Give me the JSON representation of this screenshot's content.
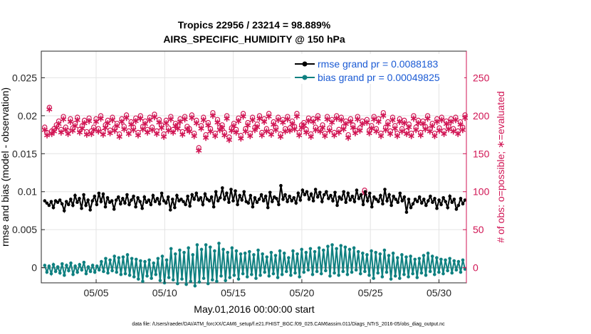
{
  "chart_data": {
    "type": "line",
    "title": "Tropics 22956 / 23214 = 98.889%",
    "subtitle": "AIRS_SPECIFIC_HUMIDITY @ 150 hPa",
    "xlabel": "May.01,2016 00:00:00 start",
    "ylabel_left": "rmse and bias (model - observation)",
    "ylabel_right": "# of obs: o=possible; ∗=evaluated",
    "xlim": [
      1,
      32
    ],
    "ylim_left": [
      -0.002,
      0.0285
    ],
    "ylim_right": [
      -20,
      285
    ],
    "x_ticks": [
      5,
      10,
      15,
      20,
      25,
      30
    ],
    "x_tick_labels": [
      "05/05",
      "05/10",
      "05/15",
      "05/20",
      "05/25",
      "05/30"
    ],
    "y_ticks_left": [
      0,
      0.005,
      0.01,
      0.015,
      0.02,
      0.025
    ],
    "y_tick_labels_left": [
      "0",
      "0.005",
      "0.01",
      "0.015",
      "0.02",
      "0.025"
    ],
    "y_ticks_right": [
      0,
      50,
      100,
      150,
      200,
      250
    ],
    "y_tick_labels_right": [
      "0",
      "50",
      "100",
      "150",
      "200",
      "250"
    ],
    "grid": true,
    "legend_position": "top-right",
    "colors": {
      "rmse": "#000000",
      "bias": "#0f8080",
      "obs": "#d11554",
      "zero_line": "#b0b0b0",
      "legend_text": "#1a5ad4"
    },
    "series": [
      {
        "name": "rmse grand pr = 0.0088183",
        "axis": "left",
        "values": [
          0.0088,
          0.0085,
          0.0082,
          0.0087,
          0.0079,
          0.0088,
          0.0086,
          0.0089,
          0.0084,
          0.0075,
          0.0087,
          0.0083,
          0.009,
          0.0082,
          0.0095,
          0.0086,
          0.0091,
          0.0078,
          0.0096,
          0.0082,
          0.0089,
          0.0076,
          0.0088,
          0.0094,
          0.0083,
          0.0098,
          0.0087,
          0.0097,
          0.008,
          0.0092,
          0.0086,
          0.0088,
          0.0077,
          0.0089,
          0.0093,
          0.0084,
          0.0091,
          0.0085,
          0.0096,
          0.0083,
          0.0089,
          0.0094,
          0.008,
          0.0092,
          0.0087,
          0.0078,
          0.0093,
          0.0086,
          0.0089,
          0.0083,
          0.0095,
          0.0087,
          0.0091,
          0.0084,
          0.0098,
          0.0088,
          0.0085,
          0.0093,
          0.0076,
          0.009,
          0.0079,
          0.0095,
          0.0088,
          0.009,
          0.0087,
          0.0083,
          0.0094,
          0.0081,
          0.0096,
          0.009,
          0.0098,
          0.0089,
          0.0092,
          0.0083,
          0.0097,
          0.009,
          0.0088,
          0.0093,
          0.008,
          0.01,
          0.0088,
          0.0092,
          0.0105,
          0.009,
          0.0098,
          0.0086,
          0.0103,
          0.0088,
          0.0101,
          0.0083,
          0.0095,
          0.0089,
          0.01,
          0.0087,
          0.0085,
          0.0095,
          0.008,
          0.0092,
          0.0086,
          0.009,
          0.0096,
          0.0088,
          0.0094,
          0.0079,
          0.0099,
          0.0087,
          0.0093,
          0.0091,
          0.0083,
          0.0108,
          0.009,
          0.0096,
          0.0087,
          0.0094,
          0.0088,
          0.0092,
          0.0085,
          0.0098,
          0.0089,
          0.0102,
          0.0096,
          0.01,
          0.009,
          0.0097,
          0.0088,
          0.0103,
          0.0093,
          0.0099,
          0.0087,
          0.0096,
          0.01,
          0.0091,
          0.0095,
          0.0088,
          0.0099,
          0.0082,
          0.0093,
          0.009,
          0.01,
          0.0086,
          0.0098,
          0.0089,
          0.0094,
          0.0087,
          0.0102,
          0.0091,
          0.0096,
          0.0083,
          0.01,
          0.0088,
          0.0098,
          0.008,
          0.0093,
          0.009,
          0.0087,
          0.0095,
          0.0084,
          0.0103,
          0.0088,
          0.0096,
          0.0082,
          0.0094,
          0.009,
          0.0086,
          0.0098,
          0.0088,
          0.0093,
          0.0073,
          0.009,
          0.0079,
          0.0084,
          0.009,
          0.0087,
          0.0093,
          0.0085,
          0.009,
          0.0082,
          0.0088,
          0.0094,
          0.0086,
          0.0091,
          0.0078,
          0.0089,
          0.0083,
          0.0092,
          0.0087,
          0.0079,
          0.0094,
          0.0086,
          0.009,
          0.0077,
          0.0082,
          0.0091,
          0.0084,
          0.0089
        ]
      },
      {
        "name": "bias grand pr = 0.00049825",
        "axis": "left",
        "values": [
          0.0003,
          -0.0006,
          0.0002,
          -0.0008,
          0.0004,
          -0.0005,
          0.0001,
          -0.0007,
          0.0005,
          -0.001,
          0.0003,
          -0.0004,
          0.0006,
          -0.0009,
          0.0002,
          -0.0006,
          0.0004,
          -0.0003,
          0.0007,
          -0.0008,
          0.0001,
          -0.0005,
          0.0003,
          -0.0006,
          0.0002,
          -0.0003,
          0.0008,
          -0.0005,
          0.0012,
          -0.0007,
          0.001,
          -0.0004,
          0.0015,
          -0.0006,
          0.0013,
          -0.0009,
          0.0014,
          -0.0008,
          0.0017,
          -0.001,
          0.0012,
          -0.0012,
          0.0011,
          -0.0015,
          0.0009,
          -0.0018,
          0.0008,
          -0.0011,
          0.001,
          -0.0014,
          0.0006,
          -0.0009,
          0.0012,
          -0.0017,
          0.0015,
          -0.002,
          0.001,
          -0.0013,
          0.0025,
          -0.0016,
          0.0018,
          -0.0021,
          0.0023,
          -0.0015,
          0.002,
          -0.0022,
          0.0026,
          -0.0018,
          0.0017,
          -0.0024,
          0.003,
          -0.0019,
          0.0024,
          -0.0014,
          0.003,
          -0.0021,
          0.0027,
          -0.0016,
          0.0022,
          -0.0018,
          0.0032,
          -0.0011,
          0.0024,
          -0.0017,
          0.002,
          -0.0013,
          0.0026,
          -0.001,
          0.0022,
          -0.0015,
          0.0018,
          -0.0008,
          0.0019,
          -0.0012,
          0.0021,
          -0.0009,
          0.0017,
          -0.0014,
          0.0023,
          -0.001,
          0.0018,
          -0.0006,
          0.0014,
          -0.0011,
          0.002,
          -0.0008,
          0.0016,
          -0.0013,
          0.0022,
          -0.0009,
          0.0019,
          -0.0005,
          0.0013,
          -0.001,
          0.0022,
          -0.0007,
          0.0018,
          -0.0012,
          0.0024,
          -0.0006,
          0.002,
          -0.0003,
          0.0025,
          -0.0009,
          0.0021,
          -0.0005,
          0.0026,
          -0.0008,
          0.0023,
          -0.0004,
          0.0028,
          -0.0011,
          0.003,
          -0.0007,
          0.0025,
          -0.001,
          0.0029,
          -0.0005,
          0.0027,
          -0.0009,
          0.0024,
          -0.0006,
          0.0026,
          -0.0003,
          0.0021,
          -0.0008,
          0.0019,
          -0.0005,
          0.0017,
          -0.001,
          0.0022,
          -0.0014,
          0.002,
          -0.0007,
          0.0018,
          -0.0012,
          0.0023,
          -0.0006,
          0.0016,
          -0.0015,
          0.0019,
          -0.0011,
          0.0013,
          -0.0014,
          0.0017,
          -0.0009,
          0.0014,
          -0.0012,
          0.0015,
          -0.0008,
          0.0011,
          -0.0013,
          0.0012,
          -0.0007,
          0.0016,
          -0.001,
          0.0019,
          -0.0005,
          0.0015,
          -0.0009,
          0.0013,
          -0.0006,
          0.0011,
          -0.0008,
          0.001,
          -0.0004,
          0.0012,
          -0.0007,
          0.0009,
          -0.0003,
          0.0008,
          -0.0006,
          0.001,
          -0.0002
        ]
      },
      {
        "name": "possible",
        "axis": "right",
        "marker": "o",
        "values": [
          185,
          178,
          211,
          180,
          183,
          188,
          193,
          182,
          199,
          185,
          180,
          196,
          184,
          190,
          198,
          182,
          187,
          194,
          179,
          197,
          180,
          185,
          196,
          183,
          200,
          179,
          188,
          194,
          181,
          198,
          184,
          190,
          176,
          196,
          186,
          201,
          180,
          192,
          185,
          197,
          178,
          200,
          186,
          193,
          182,
          198,
          185,
          202,
          180,
          195,
          188,
          176,
          194,
          184,
          199,
          182,
          190,
          187,
          196,
          179,
          199,
          186,
          183,
          201,
          177,
          194,
          158,
          187,
          198,
          175,
          191,
          183,
          204,
          177,
          195,
          185,
          188,
          178,
          200,
          172,
          184,
          190,
          182,
          197,
          174,
          203,
          183,
          191,
          177,
          198,
          185,
          189,
          200,
          178,
          196,
          183,
          203,
          179,
          192,
          185,
          198,
          176,
          195,
          183,
          199,
          184,
          193,
          186,
          203,
          178,
          188,
          191,
          182,
          197,
          176,
          196,
          185,
          200,
          183,
          188,
          177,
          199,
          184,
          195,
          178,
          200,
          182,
          198,
          186,
          193,
          175,
          196,
          188,
          181,
          199,
          184,
          193,
          102,
          195,
          181,
          187,
          199,
          183,
          196,
          177,
          204,
          185,
          192,
          180,
          198,
          187,
          177,
          196,
          183,
          194,
          180,
          189,
          177,
          200,
          185,
          194,
          178,
          193,
          186,
          200,
          183,
          190,
          177,
          196,
          184,
          198,
          180,
          193,
          186,
          196,
          183,
          198,
          180,
          192,
          185,
          201
        ]
      },
      {
        "name": "evaluated",
        "axis": "right",
        "values": [
          182,
          175,
          209,
          177,
          180,
          185,
          190,
          179,
          196,
          182,
          177,
          193,
          181,
          187,
          195,
          179,
          184,
          191,
          176,
          194,
          177,
          182,
          193,
          180,
          197,
          176,
          185,
          191,
          178,
          195,
          181,
          187,
          173,
          193,
          183,
          198,
          177,
          189,
          182,
          194,
          175,
          197,
          183,
          190,
          179,
          195,
          182,
          199,
          177,
          192,
          185,
          173,
          191,
          181,
          196,
          179,
          187,
          184,
          193,
          176,
          196,
          183,
          180,
          198,
          174,
          191,
          155,
          184,
          195,
          172,
          188,
          180,
          201,
          174,
          192,
          182,
          185,
          175,
          197,
          169,
          181,
          187,
          179,
          194,
          171,
          200,
          180,
          188,
          174,
          195,
          182,
          186,
          197,
          175,
          193,
          180,
          200,
          176,
          189,
          182,
          195,
          173,
          192,
          180,
          196,
          181,
          190,
          183,
          200,
          175,
          185,
          188,
          179,
          194,
          173,
          193,
          182,
          197,
          180,
          185,
          174,
          196,
          181,
          192,
          175,
          197,
          179,
          195,
          183,
          190,
          172,
          193,
          185,
          178,
          196,
          181,
          190,
          99,
          192,
          178,
          184,
          196,
          180,
          193,
          174,
          201,
          182,
          189,
          177,
          195,
          184,
          174,
          193,
          180,
          191,
          177,
          186,
          174,
          197,
          182,
          191,
          175,
          190,
          183,
          197,
          180,
          187,
          174,
          193,
          181,
          195,
          177,
          190,
          183,
          193,
          180,
          195,
          177,
          189,
          182,
          198
        ]
      }
    ]
  },
  "footer": "data file: /Users/raeder/DAI/ATM_forcXX/CAM6_setup/f.e21.FHIST_BGC.f09_025.CAM6assim.011/Diags_NTrS_2016-05/obs_diag_output.nc"
}
